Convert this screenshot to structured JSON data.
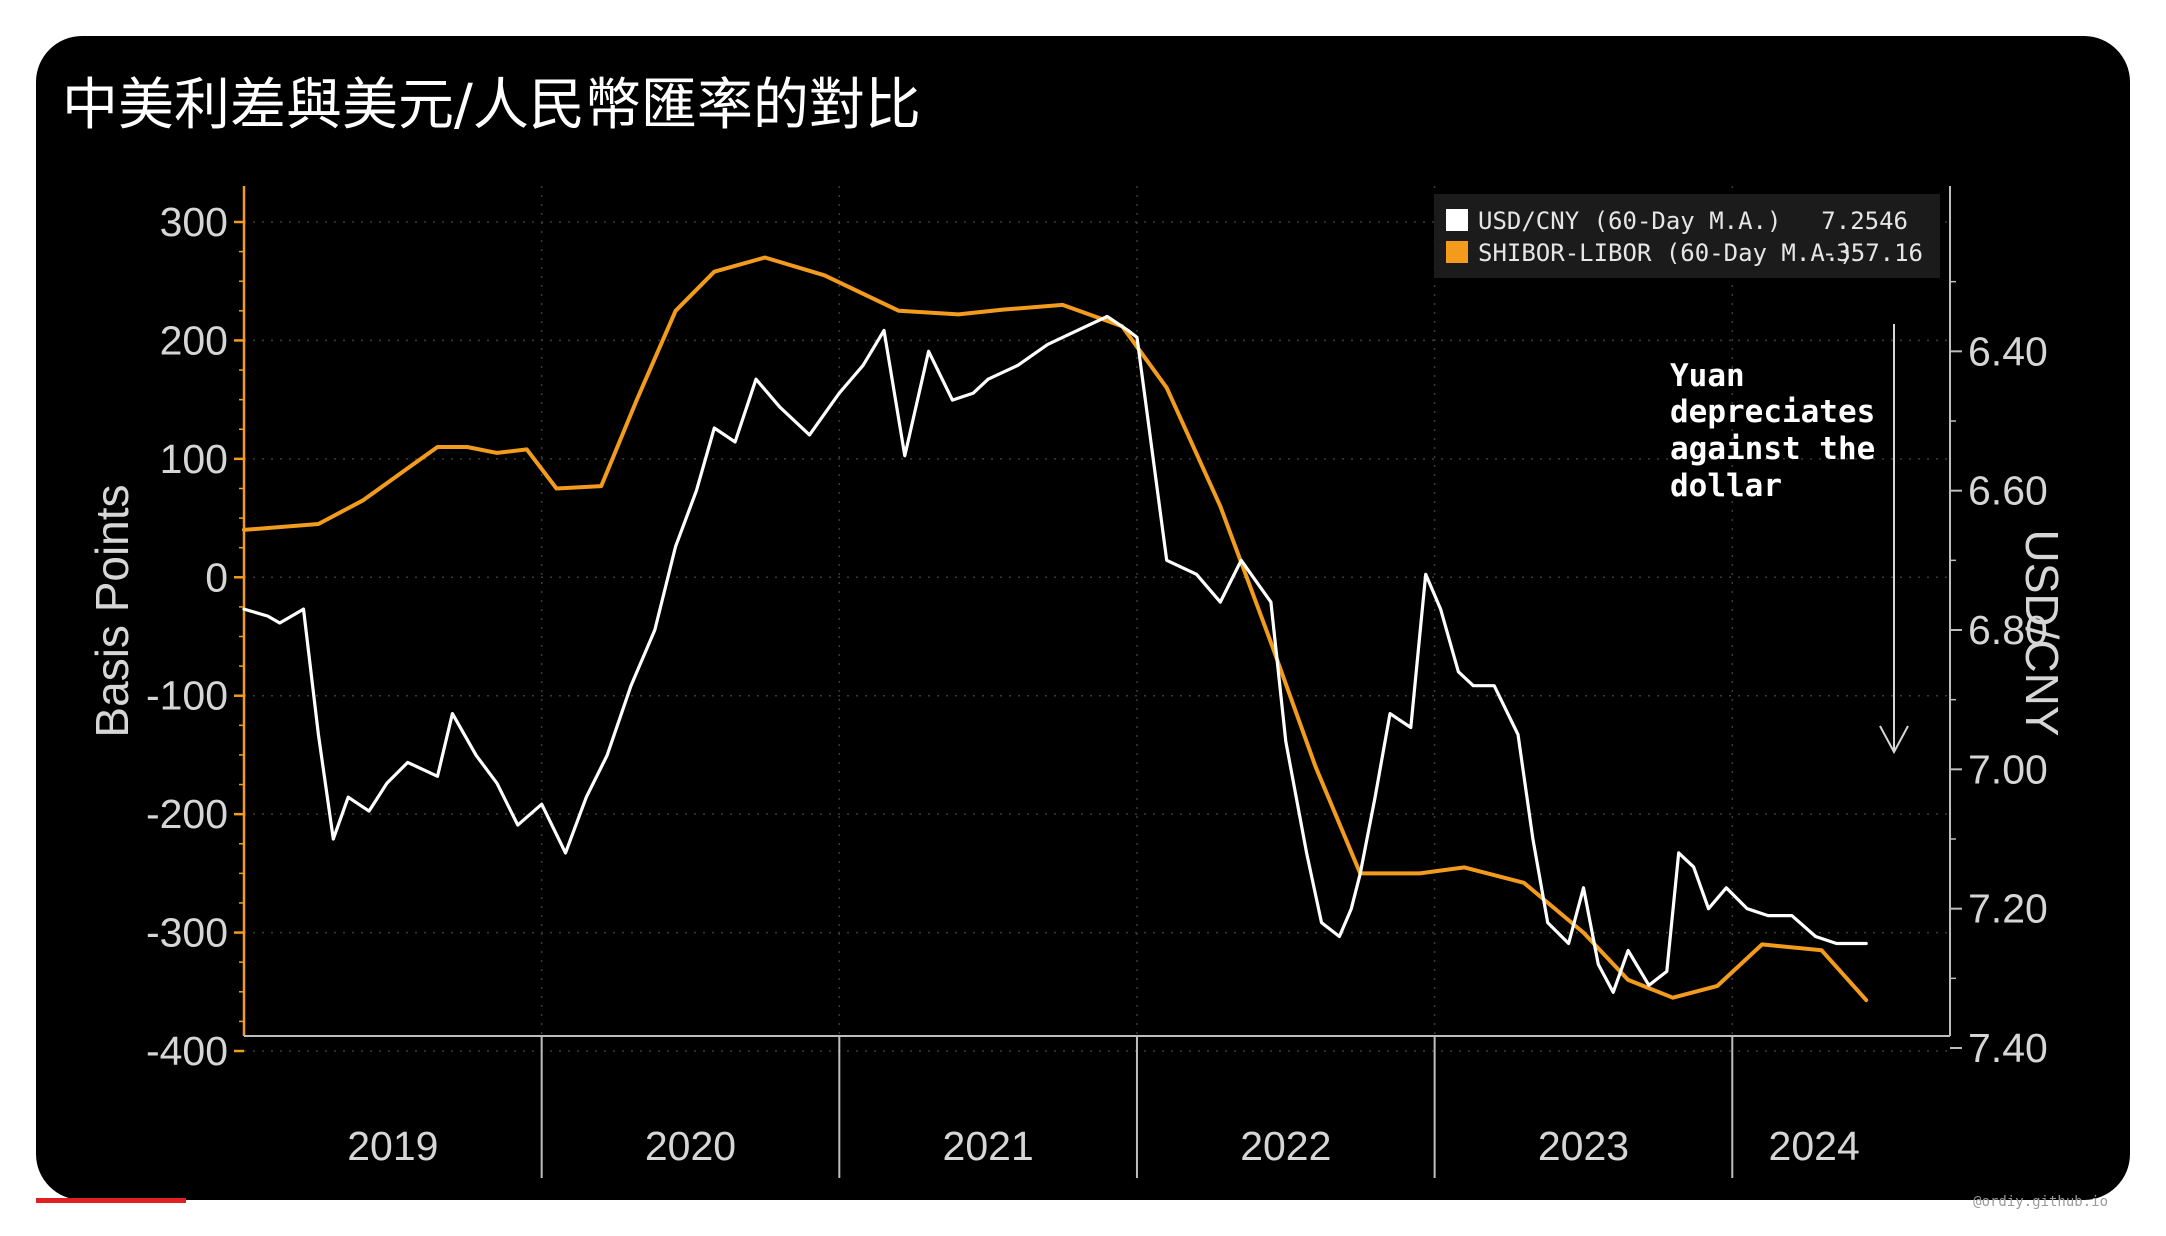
{
  "title": "中美利差與美元/人民幣匯率的對比",
  "watermark": "@ordiy.github.io",
  "chart_data": {
    "type": "line",
    "title": "中美利差與美元/人民幣匯率的對比",
    "xlabel": "",
    "ylabel": "Basis Points",
    "y2label": "USD/CNY",
    "xlim": [
      2019.0,
      2024.55
    ],
    "ylim": [
      -400,
      300
    ],
    "y2lim": [
      6.2,
      7.4
    ],
    "y2_inverted": true,
    "grid": true,
    "legend_position": "top-right",
    "x_ticks": [
      "2019",
      "2020",
      "2021",
      "2022",
      "2023",
      "2024"
    ],
    "y_ticks": [
      "300",
      "200",
      "100",
      "0",
      "-100",
      "-200",
      "-300",
      "-400"
    ],
    "y2_ticks": [
      "6.40",
      "6.60",
      "6.80",
      "7.00",
      "7.20",
      "7.40"
    ],
    "legend": [
      {
        "label": "USD/CNY  (60-Day M.A.)",
        "value": "7.2546",
        "color": "#ffffff"
      },
      {
        "label": "SHIBOR-LIBOR (60-Day M.A.)",
        "value": "-357.16",
        "color": "#f29b1c"
      }
    ],
    "annotation": [
      "Yuan",
      "depreciates",
      "against the",
      "dollar"
    ],
    "series": [
      {
        "name": "SHIBOR-LIBOR (60-Day M.A.)",
        "axis": "left",
        "color": "#f29b1c",
        "x": [
          2019.0,
          2019.25,
          2019.4,
          2019.55,
          2019.65,
          2019.75,
          2019.85,
          2019.95,
          2020.05,
          2020.2,
          2020.32,
          2020.45,
          2020.58,
          2020.75,
          2020.95,
          2021.2,
          2021.4,
          2021.55,
          2021.75,
          2021.95,
          2022.1,
          2022.28,
          2022.45,
          2022.6,
          2022.75,
          2022.95,
          2023.1,
          2023.3,
          2023.5,
          2023.65,
          2023.8,
          2023.95,
          2024.1,
          2024.3,
          2024.45
        ],
        "values": [
          40,
          45,
          65,
          92,
          110,
          110,
          105,
          108,
          75,
          77,
          150,
          225,
          258,
          270,
          255,
          225,
          222,
          226,
          230,
          212,
          160,
          60,
          -55,
          -160,
          -250,
          -250,
          -245,
          -258,
          -300,
          -340,
          -355,
          -345,
          -310,
          -315,
          -357
        ]
      },
      {
        "name": "USD/CNY (60-Day M.A.)",
        "axis": "right",
        "color": "#ffffff",
        "x": [
          2019.0,
          2019.08,
          2019.12,
          2019.16,
          2019.2,
          2019.25,
          2019.3,
          2019.35,
          2019.42,
          2019.48,
          2019.55,
          2019.65,
          2019.7,
          2019.78,
          2019.85,
          2019.92,
          2020.0,
          2020.08,
          2020.15,
          2020.22,
          2020.3,
          2020.38,
          2020.45,
          2020.52,
          2020.58,
          2020.65,
          2020.72,
          2020.8,
          2020.9,
          2021.0,
          2021.08,
          2021.15,
          2021.22,
          2021.3,
          2021.38,
          2021.45,
          2021.5,
          2021.6,
          2021.7,
          2021.8,
          2021.9,
          2021.97,
          2022.0,
          2022.1,
          2022.2,
          2022.28,
          2022.35,
          2022.4,
          2022.45,
          2022.5,
          2022.57,
          2022.62,
          2022.68,
          2022.72,
          2022.75,
          2022.8,
          2022.85,
          2022.92,
          2022.97,
          2023.02,
          2023.08,
          2023.13,
          2023.2,
          2023.28,
          2023.33,
          2023.38,
          2023.45,
          2023.5,
          2023.55,
          2023.6,
          2023.65,
          2023.72,
          2023.78,
          2023.82,
          2023.87,
          2023.92,
          2023.98,
          2024.05,
          2024.12,
          2024.2,
          2024.28,
          2024.35,
          2024.45
        ],
        "values": [
          6.77,
          6.78,
          6.79,
          6.78,
          6.77,
          6.95,
          7.1,
          7.04,
          7.06,
          7.02,
          6.99,
          7.01,
          6.92,
          6.98,
          7.02,
          7.08,
          7.05,
          7.12,
          7.04,
          6.98,
          6.88,
          6.8,
          6.68,
          6.6,
          6.51,
          6.53,
          6.44,
          6.48,
          6.52,
          6.46,
          6.42,
          6.37,
          6.55,
          6.4,
          6.47,
          6.46,
          6.44,
          6.42,
          6.39,
          6.37,
          6.35,
          6.37,
          6.38,
          6.7,
          6.72,
          6.76,
          6.7,
          6.73,
          6.76,
          6.96,
          7.12,
          7.22,
          7.24,
          7.2,
          7.15,
          7.04,
          6.92,
          6.94,
          6.72,
          6.77,
          6.86,
          6.88,
          6.88,
          6.95,
          7.1,
          7.22,
          7.25,
          7.17,
          7.28,
          7.32,
          7.26,
          7.31,
          7.29,
          7.12,
          7.14,
          7.2,
          7.17,
          7.2,
          7.21,
          7.21,
          7.24,
          7.25,
          7.25
        ]
      }
    ]
  }
}
